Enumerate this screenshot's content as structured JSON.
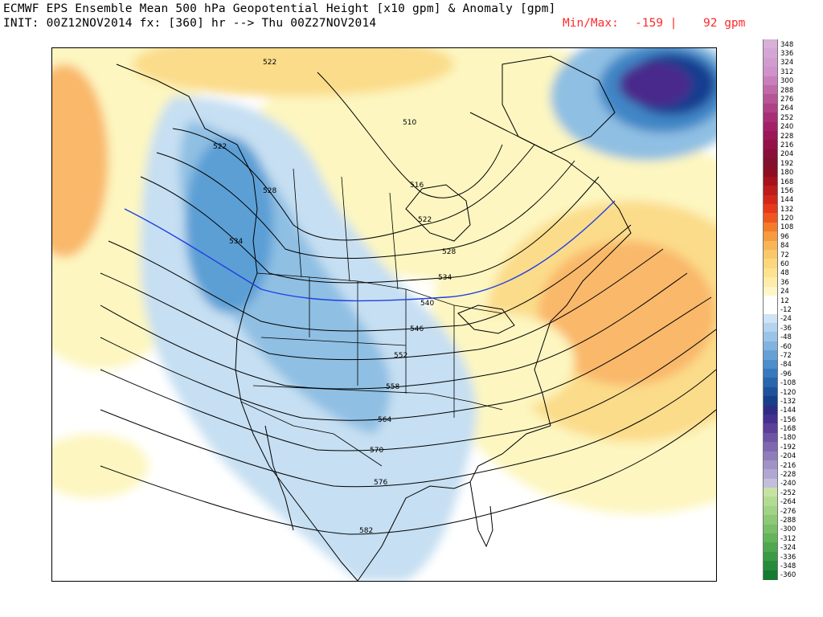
{
  "header": {
    "line1": "ECMWF EPS Ensemble Mean 500 hPa Geopotential Height [x10 gpm] & Anomaly [gpm]",
    "line2": "INIT: 00Z12NOV2014 fx: [360] hr --> Thu 00Z27NOV2014",
    "minmax_label": "Min/Max:",
    "min_value": "-159 |",
    "max_value": "92 gpm"
  },
  "map": {
    "contour_labels": [
      "522",
      "522",
      "516",
      "528",
      "534",
      "522",
      "528",
      "534",
      "540",
      "546",
      "552",
      "558",
      "564",
      "570",
      "576",
      "582",
      "510"
    ],
    "colors": {
      "positive_light": "#fdf6c0",
      "positive_mid": "#fbdc8a",
      "positive_strong": "#f9b86a",
      "positive_max": "#f5924a",
      "negative_light": "#c6dff2",
      "negative_mid": "#8fbfe3",
      "negative_strong": "#3f86c6",
      "negative_deep": "#173c8f",
      "negative_max": "#4a2a8c",
      "boundary": "#000000",
      "contour_540": "#2040e0"
    }
  },
  "legend": {
    "labels": [
      "348",
      "336",
      "324",
      "312",
      "300",
      "288",
      "276",
      "264",
      "252",
      "240",
      "228",
      "216",
      "204",
      "192",
      "180",
      "168",
      "156",
      "144",
      "132",
      "120",
      "108",
      "96",
      "84",
      "72",
      "60",
      "48",
      "36",
      "24",
      "12",
      "-12",
      "-24",
      "-36",
      "-48",
      "-60",
      "-72",
      "-84",
      "-96",
      "-108",
      "-120",
      "-132",
      "-144",
      "-156",
      "-168",
      "-180",
      "-192",
      "-204",
      "-216",
      "-228",
      "-240",
      "-252",
      "-264",
      "-276",
      "-288",
      "-300",
      "-312",
      "-324",
      "-336",
      "-348",
      "-360"
    ],
    "colors": [
      "#d8b0d8",
      "#d5a6d4",
      "#d29ccf",
      "#cf92cb",
      "#c97fbc",
      "#c06aa8",
      "#b75596",
      "#b04186",
      "#a82f77",
      "#a32067",
      "#9c1659",
      "#941247",
      "#8a0f3a",
      "#82102f",
      "#8d0e22",
      "#a5121c",
      "#bc1c1a",
      "#d4261a",
      "#e6381b",
      "#ef5620",
      "#f47a2c",
      "#f59a3f",
      "#f8b558",
      "#fac86a",
      "#fcd77d",
      "#fde290",
      "#feeca8",
      "#fef6c6",
      "#ffffff",
      "#ffffff",
      "#cfe3f4",
      "#b3d4ee",
      "#99c4e7",
      "#80b3df",
      "#66a1d6",
      "#4c8dcb",
      "#3679bd",
      "#2866ae",
      "#1f529d",
      "#183f88",
      "#2d2d86",
      "#44318f",
      "#5b3f98",
      "#6d54a4",
      "#7f68af",
      "#8f7dbb",
      "#a092c6",
      "#b1a8d2",
      "#c2bedc",
      "#c7e3a3",
      "#b4db94",
      "#a1d285",
      "#8dc976",
      "#79bf68",
      "#64b45b",
      "#4fa74f",
      "#3b9a45",
      "#288b3c",
      "#157a32"
    ]
  }
}
